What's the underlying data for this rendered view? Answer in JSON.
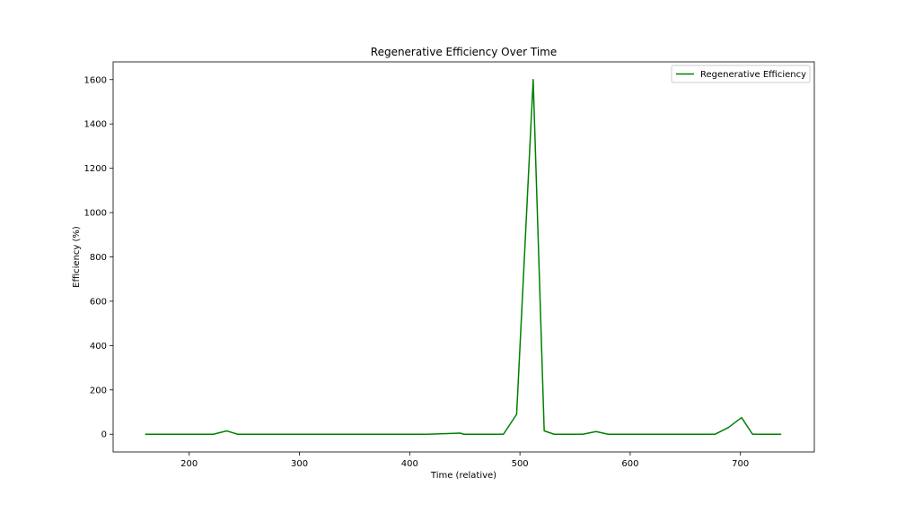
{
  "chart_data": {
    "type": "line",
    "title": "Regenerative Efficiency Over Time",
    "xlabel": "Time (relative)",
    "ylabel": "Efficiency (%)",
    "xlim": [
      131,
      767
    ],
    "ylim": [
      -80,
      1680
    ],
    "xticks": [
      200,
      300,
      400,
      500,
      600,
      700
    ],
    "yticks": [
      0,
      200,
      400,
      600,
      800,
      1000,
      1200,
      1400,
      1600
    ],
    "grid": false,
    "legend_position": "upper right",
    "series": [
      {
        "name": "Regenerative Efficiency",
        "color": "#008000",
        "x": [
          160,
          222,
          234,
          244,
          416,
          446,
          449,
          485,
          497,
          512,
          522,
          531,
          557,
          569,
          580,
          677,
          689,
          701,
          711,
          737
        ],
        "y": [
          0,
          0,
          15,
          0,
          0,
          5,
          0,
          0,
          90,
          1600,
          15,
          0,
          0,
          12,
          0,
          0,
          30,
          75,
          0,
          0
        ]
      }
    ]
  }
}
